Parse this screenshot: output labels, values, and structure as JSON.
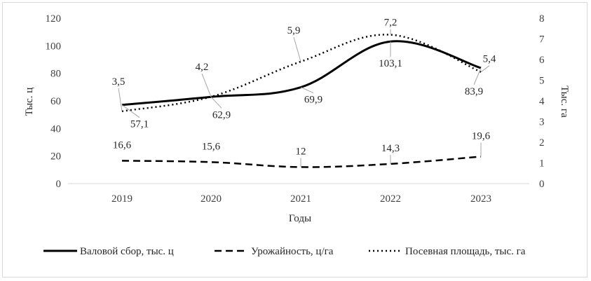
{
  "chart_data": {
    "type": "line",
    "categories": [
      "2019",
      "2020",
      "2021",
      "2022",
      "2023"
    ],
    "xlabel": "Годы",
    "ylabel_left": "Тыс. ц",
    "ylabel_right": "Тыс. га",
    "ylim_left": [
      0,
      120
    ],
    "ylim_right": [
      0,
      8
    ],
    "yticks_left": [
      "0",
      "20",
      "40",
      "60",
      "80",
      "100",
      "120"
    ],
    "yticks_right": [
      "0",
      "1",
      "2",
      "3",
      "4",
      "5",
      "6",
      "7",
      "8"
    ],
    "grid": false,
    "legend_position": "bottom",
    "series": [
      {
        "name": "Валовой сбор, тыс. ц",
        "axis": "left",
        "style": "solid",
        "values": [
          57.1,
          62.9,
          69.9,
          103.1,
          83.9
        ],
        "labels": [
          "57,1",
          "62,9",
          "69,9",
          "103,1",
          "83,9"
        ]
      },
      {
        "name": "Урожайность, ц/га",
        "axis": "left",
        "style": "dashed",
        "values": [
          16.6,
          15.6,
          12,
          14.3,
          19.6
        ],
        "labels": [
          "16,6",
          "15,6",
          "12",
          "14,3",
          "19,6"
        ]
      },
      {
        "name": "Посевная площадь, тыс. га",
        "axis": "right",
        "style": "dotted",
        "values": [
          3.5,
          4.2,
          5.9,
          7.2,
          5.4
        ],
        "labels": [
          "3,5",
          "4,2",
          "5,9",
          "7,2",
          "5,4"
        ]
      }
    ],
    "colors": {
      "line": "#000000",
      "axis": "#d9d9d9",
      "text": "#404040",
      "leader": "#a6a6a6"
    }
  }
}
